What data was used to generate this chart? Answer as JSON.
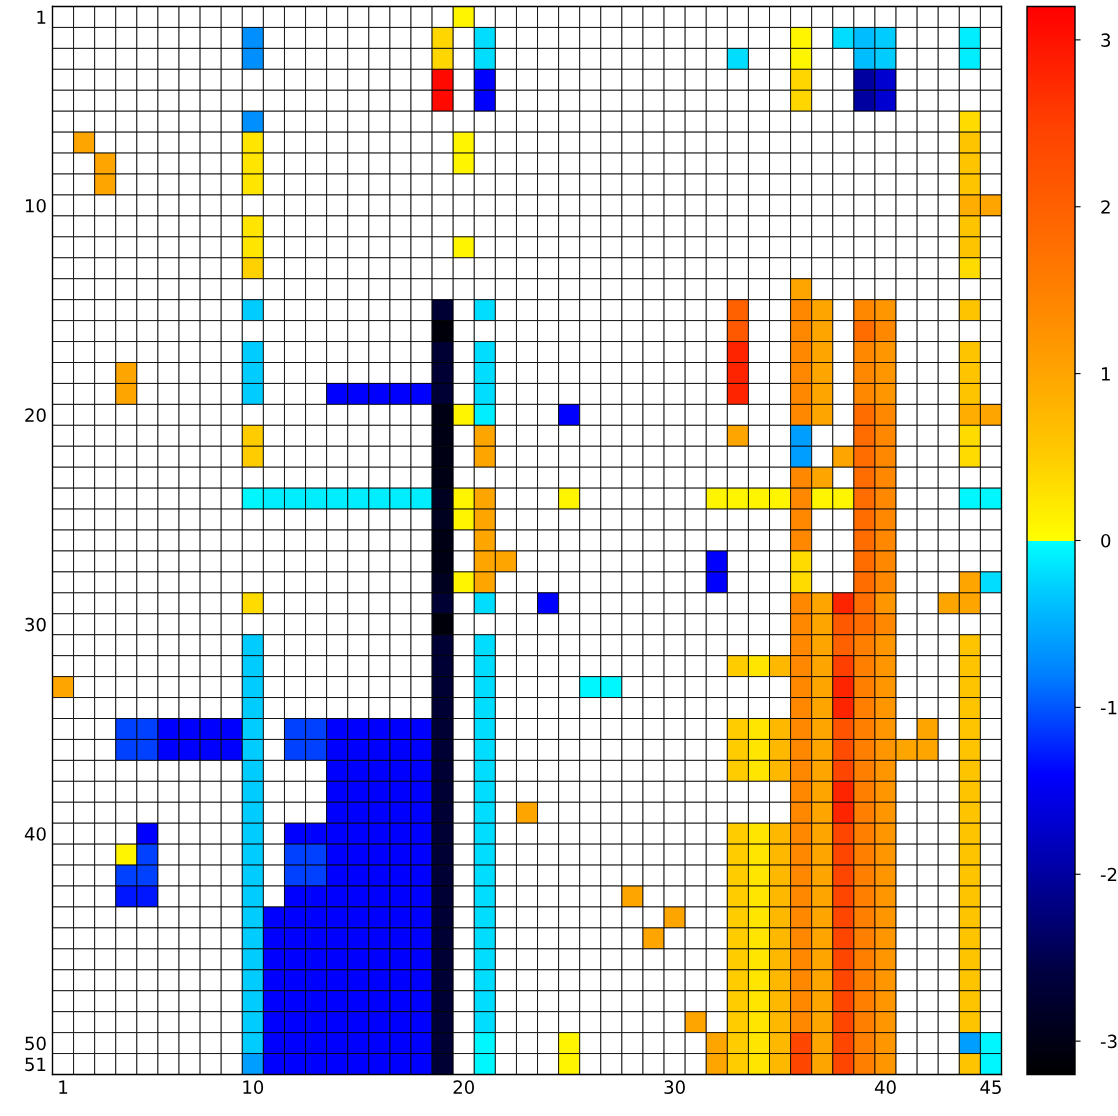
{
  "chart_data": {
    "type": "heatmap",
    "categories": [
      "1",
      null,
      null,
      null,
      null,
      null,
      null,
      null,
      null,
      "10",
      null,
      null,
      null,
      null,
      null,
      null,
      null,
      null,
      null,
      "20",
      null,
      null,
      null,
      null,
      null,
      null,
      null,
      null,
      null,
      "30",
      null,
      null,
      null,
      null,
      null,
      null,
      null,
      null,
      null,
      "40",
      null,
      null,
      null,
      null,
      "45"
    ],
    "y_categories": [
      "1",
      null,
      null,
      null,
      null,
      null,
      null,
      null,
      null,
      "10",
      null,
      null,
      null,
      null,
      null,
      null,
      null,
      null,
      null,
      "20",
      null,
      null,
      null,
      null,
      null,
      null,
      null,
      null,
      null,
      "30",
      null,
      null,
      null,
      null,
      null,
      null,
      null,
      null,
      null,
      "40",
      null,
      null,
      null,
      null,
      null,
      null,
      null,
      null,
      null,
      "50",
      "51"
    ],
    "clim": [
      -3.2,
      3.2
    ],
    "cticks": [
      -3,
      -2,
      -1,
      0,
      1,
      2,
      3
    ],
    "cells": [
      [
        null,
        null,
        null,
        null,
        null,
        null,
        null,
        null,
        null,
        null,
        null,
        null,
        null,
        null,
        null,
        null,
        null,
        null,
        null,
        0.1,
        null,
        null,
        null,
        null,
        null,
        null,
        null,
        null,
        null,
        null,
        null,
        null,
        null,
        null,
        null,
        null,
        null,
        null,
        null,
        null,
        null,
        null,
        null,
        null,
        null
      ],
      [
        null,
        null,
        null,
        null,
        null,
        null,
        null,
        null,
        null,
        -0.7,
        null,
        null,
        null,
        null,
        null,
        null,
        null,
        null,
        0.4,
        null,
        -0.2,
        null,
        null,
        null,
        null,
        null,
        null,
        null,
        null,
        null,
        null,
        null,
        null,
        null,
        null,
        0.1,
        null,
        -0.2,
        -0.4,
        -0.3,
        null,
        null,
        null,
        -0.1,
        null
      ],
      [
        null,
        null,
        null,
        null,
        null,
        null,
        null,
        null,
        null,
        -0.7,
        null,
        null,
        null,
        null,
        null,
        null,
        null,
        null,
        0.4,
        null,
        -0.2,
        null,
        null,
        null,
        null,
        null,
        null,
        null,
        null,
        null,
        null,
        null,
        -0.2,
        null,
        null,
        0.1,
        null,
        null,
        -0.4,
        -0.3,
        null,
        null,
        null,
        -0.1,
        null
      ],
      [
        null,
        null,
        null,
        null,
        null,
        null,
        null,
        null,
        null,
        null,
        null,
        null,
        null,
        null,
        null,
        null,
        null,
        null,
        3.1,
        null,
        -1.4,
        null,
        null,
        null,
        null,
        null,
        null,
        null,
        null,
        null,
        null,
        null,
        null,
        null,
        null,
        0.4,
        null,
        null,
        -2.0,
        -1.7,
        null,
        null,
        null,
        null,
        null
      ],
      [
        null,
        null,
        null,
        null,
        null,
        null,
        null,
        null,
        null,
        null,
        null,
        null,
        null,
        null,
        null,
        null,
        null,
        null,
        3.1,
        null,
        -1.4,
        null,
        null,
        null,
        null,
        null,
        null,
        null,
        null,
        null,
        null,
        null,
        null,
        null,
        null,
        0.4,
        null,
        null,
        -2.0,
        -1.7,
        null,
        null,
        null,
        null,
        null
      ],
      [
        null,
        null,
        null,
        null,
        null,
        null,
        null,
        null,
        null,
        -0.7,
        null,
        null,
        null,
        null,
        null,
        null,
        null,
        null,
        null,
        null,
        null,
        null,
        null,
        null,
        null,
        null,
        null,
        null,
        null,
        null,
        null,
        null,
        null,
        null,
        null,
        null,
        null,
        null,
        null,
        null,
        null,
        null,
        null,
        0.35,
        null
      ],
      [
        null,
        1.0,
        null,
        null,
        null,
        null,
        null,
        null,
        null,
        0.25,
        null,
        null,
        null,
        null,
        null,
        null,
        null,
        null,
        null,
        0.1,
        null,
        null,
        null,
        null,
        null,
        null,
        null,
        null,
        null,
        null,
        null,
        null,
        null,
        null,
        null,
        null,
        null,
        null,
        null,
        null,
        null,
        null,
        null,
        0.6,
        null
      ],
      [
        null,
        null,
        1.0,
        null,
        null,
        null,
        null,
        null,
        null,
        0.25,
        null,
        null,
        null,
        null,
        null,
        null,
        null,
        null,
        null,
        0.1,
        null,
        null,
        null,
        null,
        null,
        null,
        null,
        null,
        null,
        null,
        null,
        null,
        null,
        null,
        null,
        null,
        null,
        null,
        null,
        null,
        null,
        null,
        null,
        0.6,
        null
      ],
      [
        null,
        null,
        1.0,
        null,
        null,
        null,
        null,
        null,
        null,
        0.25,
        null,
        null,
        null,
        null,
        null,
        null,
        null,
        null,
        null,
        null,
        null,
        null,
        null,
        null,
        null,
        null,
        null,
        null,
        null,
        null,
        null,
        null,
        null,
        null,
        null,
        null,
        null,
        null,
        null,
        null,
        null,
        null,
        null,
        0.6,
        null
      ],
      [
        null,
        null,
        null,
        null,
        null,
        null,
        null,
        null,
        null,
        null,
        null,
        null,
        null,
        null,
        null,
        null,
        null,
        null,
        null,
        null,
        null,
        null,
        null,
        null,
        null,
        null,
        null,
        null,
        null,
        null,
        null,
        null,
        null,
        null,
        null,
        null,
        null,
        null,
        null,
        null,
        null,
        null,
        null,
        0.9,
        1.0
      ],
      [
        null,
        null,
        null,
        null,
        null,
        null,
        null,
        null,
        null,
        0.25,
        null,
        null,
        null,
        null,
        null,
        null,
        null,
        null,
        null,
        null,
        null,
        null,
        null,
        null,
        null,
        null,
        null,
        null,
        null,
        null,
        null,
        null,
        null,
        null,
        null,
        null,
        null,
        null,
        null,
        null,
        null,
        null,
        null,
        0.6,
        null
      ],
      [
        null,
        null,
        null,
        null,
        null,
        null,
        null,
        null,
        null,
        0.25,
        null,
        null,
        null,
        null,
        null,
        null,
        null,
        null,
        null,
        0.1,
        null,
        null,
        null,
        null,
        null,
        null,
        null,
        null,
        null,
        null,
        null,
        null,
        null,
        null,
        null,
        null,
        null,
        null,
        null,
        null,
        null,
        null,
        null,
        0.6,
        null
      ],
      [
        null,
        null,
        null,
        null,
        null,
        null,
        null,
        null,
        null,
        0.45,
        null,
        null,
        null,
        null,
        null,
        null,
        null,
        null,
        null,
        null,
        null,
        null,
        null,
        null,
        null,
        null,
        null,
        null,
        null,
        null,
        null,
        null,
        null,
        null,
        null,
        null,
        null,
        null,
        null,
        null,
        null,
        null,
        null,
        0.35,
        null
      ],
      [
        null,
        null,
        null,
        null,
        null,
        null,
        null,
        null,
        null,
        null,
        null,
        null,
        null,
        null,
        null,
        null,
        null,
        null,
        null,
        null,
        null,
        null,
        null,
        null,
        null,
        null,
        null,
        null,
        null,
        null,
        null,
        null,
        null,
        null,
        null,
        1.0,
        null,
        null,
        null,
        null,
        null,
        null,
        null,
        null,
        null
      ],
      [
        null,
        null,
        null,
        null,
        null,
        null,
        null,
        null,
        null,
        -0.3,
        null,
        null,
        null,
        null,
        null,
        null,
        null,
        null,
        -2.7,
        null,
        -0.2,
        null,
        null,
        null,
        null,
        null,
        null,
        null,
        null,
        null,
        null,
        null,
        2.0,
        null,
        null,
        1.4,
        1.0,
        null,
        1.4,
        1.2,
        null,
        null,
        null,
        0.6,
        null
      ],
      [
        null,
        null,
        null,
        null,
        null,
        null,
        null,
        null,
        null,
        null,
        null,
        null,
        null,
        null,
        null,
        null,
        null,
        null,
        -3.1,
        null,
        null,
        null,
        null,
        null,
        null,
        null,
        null,
        null,
        null,
        null,
        null,
        null,
        2.1,
        null,
        null,
        1.4,
        1.0,
        null,
        1.8,
        1.4,
        null,
        null,
        null,
        null,
        null
      ],
      [
        null,
        null,
        null,
        null,
        null,
        null,
        null,
        null,
        null,
        -0.3,
        null,
        null,
        null,
        null,
        null,
        null,
        null,
        null,
        -2.7,
        null,
        -0.2,
        null,
        null,
        null,
        null,
        null,
        null,
        null,
        null,
        null,
        null,
        null,
        2.8,
        null,
        null,
        1.4,
        1.0,
        null,
        1.4,
        1.2,
        null,
        null,
        null,
        0.6,
        null
      ],
      [
        null,
        null,
        null,
        1.0,
        null,
        null,
        null,
        null,
        null,
        -0.3,
        null,
        null,
        null,
        null,
        null,
        null,
        null,
        null,
        -2.7,
        null,
        -0.2,
        null,
        null,
        null,
        null,
        null,
        null,
        null,
        null,
        null,
        null,
        null,
        2.8,
        null,
        null,
        1.4,
        1.0,
        null,
        1.4,
        1.2,
        null,
        null,
        null,
        0.6,
        null
      ],
      [
        null,
        null,
        null,
        1.0,
        null,
        null,
        null,
        null,
        null,
        -0.3,
        null,
        null,
        null,
        -1.4,
        -1.4,
        -1.4,
        -1.4,
        -1.4,
        -2.7,
        null,
        -0.2,
        null,
        null,
        null,
        null,
        null,
        null,
        null,
        null,
        null,
        null,
        null,
        2.8,
        null,
        null,
        1.4,
        1.0,
        null,
        1.4,
        1.2,
        null,
        null,
        null,
        0.6,
        null
      ],
      [
        null,
        null,
        null,
        null,
        null,
        null,
        null,
        null,
        null,
        null,
        null,
        null,
        null,
        null,
        null,
        null,
        null,
        null,
        -3.0,
        0.1,
        -0.1,
        null,
        null,
        null,
        -1.4,
        null,
        null,
        null,
        null,
        null,
        null,
        null,
        null,
        null,
        null,
        1.4,
        1.0,
        null,
        1.8,
        1.4,
        null,
        null,
        null,
        0.9,
        1.0
      ],
      [
        null,
        null,
        null,
        null,
        null,
        null,
        null,
        null,
        null,
        0.5,
        null,
        null,
        null,
        null,
        null,
        null,
        null,
        null,
        -3.0,
        null,
        1.0,
        null,
        null,
        null,
        null,
        null,
        null,
        null,
        null,
        null,
        null,
        null,
        1.0,
        null,
        null,
        -0.6,
        null,
        null,
        1.8,
        1.4,
        null,
        null,
        null,
        0.35,
        null
      ],
      [
        null,
        null,
        null,
        null,
        null,
        null,
        null,
        null,
        null,
        0.5,
        null,
        null,
        null,
        null,
        null,
        null,
        null,
        null,
        -3.0,
        null,
        1.0,
        null,
        null,
        null,
        null,
        null,
        null,
        null,
        null,
        null,
        null,
        null,
        null,
        null,
        null,
        -0.6,
        null,
        1.0,
        1.8,
        1.4,
        null,
        null,
        null,
        0.35,
        null
      ],
      [
        null,
        null,
        null,
        null,
        null,
        null,
        null,
        null,
        null,
        null,
        null,
        null,
        null,
        null,
        null,
        null,
        null,
        null,
        -3.0,
        null,
        null,
        null,
        null,
        null,
        null,
        null,
        null,
        null,
        null,
        null,
        null,
        null,
        null,
        null,
        null,
        1.4,
        1.0,
        null,
        1.8,
        1.4,
        null,
        null,
        null,
        null,
        null
      ],
      [
        null,
        null,
        null,
        null,
        null,
        null,
        null,
        null,
        null,
        -0.05,
        -0.1,
        -0.1,
        -0.1,
        -0.1,
        -0.1,
        -0.1,
        -0.1,
        -0.1,
        -2.9,
        0.1,
        1.0,
        null,
        null,
        null,
        0.1,
        null,
        null,
        null,
        null,
        null,
        null,
        0.1,
        0.1,
        0.1,
        0.1,
        1.4,
        0.1,
        0.1,
        1.8,
        1.4,
        null,
        null,
        null,
        -0.05,
        -0.05
      ],
      [
        null,
        null,
        null,
        null,
        null,
        null,
        null,
        null,
        null,
        null,
        null,
        null,
        null,
        null,
        null,
        null,
        null,
        null,
        -2.9,
        0.1,
        1.0,
        null,
        null,
        null,
        null,
        null,
        null,
        null,
        null,
        null,
        null,
        null,
        null,
        null,
        null,
        1.4,
        null,
        null,
        1.8,
        1.4,
        null,
        null,
        null,
        null,
        null
      ],
      [
        null,
        null,
        null,
        null,
        null,
        null,
        null,
        null,
        null,
        null,
        null,
        null,
        null,
        null,
        null,
        null,
        null,
        null,
        -3.0,
        null,
        1.0,
        null,
        null,
        null,
        null,
        null,
        null,
        null,
        null,
        null,
        null,
        null,
        null,
        null,
        null,
        1.4,
        null,
        null,
        1.8,
        1.4,
        null,
        null,
        null,
        null,
        null
      ],
      [
        null,
        null,
        null,
        null,
        null,
        null,
        null,
        null,
        null,
        null,
        null,
        null,
        null,
        null,
        null,
        null,
        null,
        null,
        -3.0,
        null,
        1.0,
        1.0,
        null,
        null,
        null,
        null,
        null,
        null,
        null,
        null,
        null,
        -1.4,
        null,
        null,
        null,
        0.35,
        null,
        null,
        1.8,
        1.4,
        null,
        null,
        null,
        null,
        null
      ],
      [
        null,
        null,
        null,
        null,
        null,
        null,
        null,
        null,
        null,
        null,
        null,
        null,
        null,
        null,
        null,
        null,
        null,
        null,
        -2.9,
        0.1,
        1.0,
        null,
        null,
        null,
        null,
        null,
        null,
        null,
        null,
        null,
        null,
        -1.4,
        null,
        null,
        null,
        0.35,
        null,
        null,
        1.8,
        1.4,
        null,
        null,
        null,
        1.0,
        -0.2
      ],
      [
        null,
        null,
        null,
        null,
        null,
        null,
        null,
        null,
        null,
        0.35,
        null,
        null,
        null,
        null,
        null,
        null,
        null,
        null,
        -2.7,
        null,
        -0.2,
        null,
        null,
        -1.4,
        null,
        null,
        null,
        null,
        null,
        null,
        null,
        null,
        null,
        null,
        null,
        1.4,
        1.0,
        2.8,
        1.8,
        1.2,
        null,
        null,
        1.0,
        1.0,
        null
      ],
      [
        null,
        null,
        null,
        null,
        null,
        null,
        null,
        null,
        null,
        null,
        null,
        null,
        null,
        null,
        null,
        null,
        null,
        null,
        -3.1,
        null,
        null,
        null,
        null,
        null,
        null,
        null,
        null,
        null,
        null,
        null,
        null,
        null,
        null,
        null,
        null,
        1.4,
        1.0,
        2.1,
        1.8,
        1.4,
        null,
        null,
        null,
        null,
        null
      ],
      [
        null,
        null,
        null,
        null,
        null,
        null,
        null,
        null,
        null,
        -0.3,
        null,
        null,
        null,
        null,
        null,
        null,
        null,
        null,
        -2.7,
        null,
        -0.2,
        null,
        null,
        null,
        null,
        null,
        null,
        null,
        null,
        null,
        null,
        null,
        null,
        null,
        null,
        1.4,
        1.0,
        2.0,
        1.5,
        1.2,
        null,
        null,
        null,
        0.6,
        null
      ],
      [
        null,
        null,
        null,
        null,
        null,
        null,
        null,
        null,
        null,
        -0.3,
        null,
        null,
        null,
        null,
        null,
        null,
        null,
        null,
        -2.7,
        null,
        -0.2,
        null,
        null,
        null,
        null,
        null,
        null,
        null,
        null,
        null,
        null,
        null,
        0.5,
        0.25,
        0.75,
        1.4,
        1.0,
        2.5,
        1.5,
        1.2,
        null,
        null,
        null,
        0.6,
        null
      ],
      [
        1.0,
        null,
        null,
        null,
        null,
        null,
        null,
        null,
        null,
        -0.3,
        null,
        null,
        null,
        null,
        null,
        null,
        null,
        null,
        -2.7,
        null,
        -0.2,
        null,
        null,
        null,
        null,
        -0.05,
        -0.05,
        null,
        null,
        null,
        null,
        null,
        null,
        null,
        null,
        1.4,
        1.0,
        2.8,
        1.5,
        1.2,
        null,
        null,
        null,
        0.6,
        null
      ],
      [
        null,
        null,
        null,
        null,
        null,
        null,
        null,
        null,
        null,
        -0.3,
        null,
        null,
        null,
        null,
        null,
        null,
        null,
        null,
        -2.7,
        null,
        -0.2,
        null,
        null,
        null,
        null,
        null,
        null,
        null,
        null,
        null,
        null,
        null,
        null,
        null,
        null,
        1.4,
        1.0,
        2.8,
        1.5,
        1.2,
        null,
        null,
        null,
        0.6,
        null
      ],
      [
        null,
        null,
        null,
        -1.1,
        -1.1,
        -1.4,
        -1.4,
        -1.4,
        -1.4,
        -0.3,
        null,
        -1.1,
        -1.1,
        -1.4,
        -1.4,
        -1.4,
        -1.4,
        -1.4,
        -2.7,
        null,
        -0.2,
        null,
        null,
        null,
        null,
        null,
        null,
        null,
        null,
        null,
        null,
        null,
        0.5,
        0.25,
        0.75,
        1.4,
        1.0,
        2.2,
        1.5,
        1.2,
        null,
        1.0,
        null,
        0.6,
        null
      ],
      [
        null,
        null,
        null,
        -1.1,
        -1.1,
        -1.4,
        -1.4,
        -1.4,
        -1.4,
        -0.3,
        null,
        -1.1,
        -1.1,
        -1.4,
        -1.4,
        -1.4,
        -1.4,
        -1.4,
        -2.7,
        null,
        -0.2,
        null,
        null,
        null,
        null,
        null,
        null,
        null,
        null,
        null,
        null,
        null,
        0.5,
        0.25,
        0.75,
        1.4,
        1.0,
        2.3,
        1.5,
        1.2,
        1.0,
        1.0,
        null,
        0.6,
        null
      ],
      [
        null,
        null,
        null,
        null,
        null,
        null,
        null,
        null,
        null,
        -0.3,
        null,
        null,
        null,
        -1.4,
        -1.4,
        -1.4,
        -1.4,
        -1.4,
        -2.7,
        null,
        -0.2,
        null,
        null,
        null,
        null,
        null,
        null,
        null,
        null,
        null,
        null,
        null,
        0.5,
        0.25,
        0.75,
        1.4,
        1.0,
        2.4,
        1.5,
        1.2,
        null,
        null,
        null,
        0.6,
        null
      ],
      [
        null,
        null,
        null,
        null,
        null,
        null,
        null,
        null,
        null,
        -0.3,
        null,
        null,
        null,
        -1.4,
        -1.4,
        -1.4,
        -1.4,
        -1.4,
        -2.7,
        null,
        -0.2,
        null,
        null,
        null,
        null,
        null,
        null,
        null,
        null,
        null,
        null,
        null,
        null,
        null,
        null,
        1.4,
        1.0,
        2.8,
        1.5,
        1.2,
        null,
        null,
        null,
        0.6,
        null
      ],
      [
        null,
        null,
        null,
        null,
        null,
        null,
        null,
        null,
        null,
        -0.3,
        null,
        null,
        null,
        -1.4,
        -1.4,
        -1.4,
        -1.4,
        -1.4,
        -2.7,
        null,
        -0.2,
        null,
        1.0,
        null,
        null,
        null,
        null,
        null,
        null,
        null,
        null,
        null,
        null,
        null,
        null,
        1.4,
        1.0,
        2.8,
        1.5,
        1.2,
        null,
        null,
        null,
        0.6,
        null
      ],
      [
        null,
        null,
        null,
        null,
        -1.4,
        null,
        null,
        null,
        null,
        -0.3,
        null,
        -1.4,
        -1.4,
        -1.4,
        -1.4,
        -1.4,
        -1.4,
        -1.4,
        -2.7,
        null,
        -0.2,
        null,
        null,
        null,
        null,
        null,
        null,
        null,
        null,
        null,
        null,
        null,
        0.5,
        0.25,
        0.75,
        1.4,
        1.0,
        2.4,
        1.5,
        1.2,
        null,
        null,
        null,
        0.6,
        null
      ],
      [
        null,
        null,
        null,
        0.1,
        -1.1,
        null,
        null,
        null,
        null,
        -0.3,
        null,
        -1.1,
        -1.1,
        -1.4,
        -1.4,
        -1.4,
        -1.4,
        -1.4,
        -2.7,
        null,
        -0.2,
        null,
        null,
        null,
        null,
        null,
        null,
        null,
        null,
        null,
        null,
        null,
        0.5,
        0.25,
        0.75,
        1.4,
        1.0,
        2.4,
        1.5,
        1.2,
        null,
        null,
        null,
        0.6,
        null
      ],
      [
        null,
        null,
        null,
        -1.1,
        -1.1,
        null,
        null,
        null,
        null,
        -0.3,
        null,
        -1.1,
        -1.1,
        -1.4,
        -1.4,
        -1.4,
        -1.4,
        -1.4,
        -2.7,
        null,
        -0.2,
        null,
        null,
        null,
        null,
        null,
        null,
        null,
        null,
        null,
        null,
        null,
        0.5,
        0.25,
        0.75,
        1.4,
        1.0,
        2.4,
        1.5,
        1.2,
        null,
        null,
        null,
        0.6,
        null
      ],
      [
        null,
        null,
        null,
        -1.3,
        -1.3,
        null,
        null,
        null,
        null,
        -0.3,
        null,
        -1.4,
        -1.4,
        -1.4,
        -1.4,
        -1.4,
        -1.4,
        -1.4,
        -2.7,
        null,
        -0.2,
        null,
        null,
        null,
        null,
        null,
        null,
        1.0,
        null,
        null,
        null,
        null,
        0.5,
        0.25,
        0.75,
        1.4,
        1.0,
        2.4,
        1.5,
        1.2,
        null,
        null,
        null,
        0.6,
        null
      ],
      [
        null,
        null,
        null,
        null,
        null,
        null,
        null,
        null,
        null,
        -0.3,
        -1.4,
        -1.4,
        -1.4,
        -1.4,
        -1.4,
        -1.4,
        -1.4,
        -1.4,
        -2.7,
        null,
        -0.2,
        null,
        null,
        null,
        null,
        null,
        null,
        null,
        null,
        1.0,
        null,
        null,
        0.5,
        0.25,
        0.75,
        1.4,
        1.0,
        2.4,
        1.5,
        1.2,
        null,
        null,
        null,
        0.6,
        null
      ],
      [
        null,
        null,
        null,
        null,
        null,
        null,
        null,
        null,
        null,
        -0.3,
        -1.4,
        -1.4,
        -1.4,
        -1.4,
        -1.4,
        -1.4,
        -1.4,
        -1.4,
        -2.7,
        null,
        -0.2,
        null,
        null,
        null,
        null,
        null,
        null,
        null,
        1.0,
        null,
        null,
        null,
        0.5,
        0.25,
        0.75,
        1.4,
        1.0,
        2.4,
        1.5,
        1.2,
        null,
        null,
        null,
        0.6,
        null
      ],
      [
        null,
        null,
        null,
        null,
        null,
        null,
        null,
        null,
        null,
        -0.3,
        -1.4,
        -1.4,
        -1.4,
        -1.4,
        -1.4,
        -1.4,
        -1.4,
        -1.4,
        -2.7,
        null,
        -0.2,
        null,
        null,
        null,
        null,
        null,
        null,
        null,
        null,
        null,
        null,
        null,
        0.5,
        0.25,
        0.75,
        1.4,
        1.0,
        2.4,
        1.5,
        1.2,
        null,
        null,
        null,
        0.6,
        null
      ],
      [
        null,
        null,
        null,
        null,
        null,
        null,
        null,
        null,
        null,
        -0.3,
        -1.4,
        -1.4,
        -1.4,
        -1.4,
        -1.4,
        -1.4,
        -1.4,
        -1.4,
        -2.7,
        null,
        -0.2,
        null,
        null,
        null,
        null,
        null,
        null,
        null,
        null,
        null,
        null,
        null,
        0.5,
        0.25,
        0.75,
        1.4,
        1.0,
        2.4,
        1.5,
        1.2,
        null,
        null,
        null,
        0.6,
        null
      ],
      [
        null,
        null,
        null,
        null,
        null,
        null,
        null,
        null,
        null,
        -0.3,
        -1.4,
        -1.4,
        -1.4,
        -1.4,
        -1.4,
        -1.4,
        -1.4,
        -1.4,
        -2.7,
        null,
        -0.2,
        null,
        null,
        null,
        null,
        null,
        null,
        null,
        null,
        null,
        null,
        null,
        0.5,
        0.25,
        0.75,
        1.4,
        1.0,
        2.4,
        1.5,
        1.2,
        null,
        null,
        null,
        0.6,
        null
      ],
      [
        null,
        null,
        null,
        null,
        null,
        null,
        null,
        null,
        null,
        -0.3,
        -1.4,
        -1.4,
        -1.4,
        -1.4,
        -1.4,
        -1.4,
        -1.4,
        -1.4,
        -2.7,
        null,
        -0.2,
        null,
        null,
        null,
        null,
        null,
        null,
        null,
        null,
        null,
        1.0,
        null,
        0.5,
        0.25,
        0.75,
        1.4,
        1.0,
        2.4,
        1.5,
        1.2,
        null,
        null,
        null,
        0.6,
        null
      ],
      [
        null,
        null,
        null,
        null,
        null,
        null,
        null,
        null,
        null,
        -0.3,
        -1.4,
        -1.4,
        -1.4,
        -1.4,
        -1.4,
        -1.4,
        -1.4,
        -1.4,
        -2.7,
        null,
        -0.05,
        null,
        null,
        null,
        0.1,
        null,
        null,
        null,
        null,
        null,
        null,
        1.0,
        0.5,
        0.25,
        0.75,
        2.4,
        1.0,
        2.4,
        1.5,
        1.2,
        null,
        null,
        null,
        -0.6,
        -0.05
      ],
      [
        null,
        null,
        null,
        null,
        null,
        null,
        null,
        null,
        null,
        -0.6,
        -1.4,
        -1.4,
        -1.4,
        -1.4,
        -1.4,
        -1.4,
        -1.4,
        -1.4,
        -2.7,
        null,
        -0.05,
        null,
        null,
        null,
        0.1,
        null,
        null,
        null,
        null,
        null,
        null,
        1.0,
        0.5,
        0.25,
        0.75,
        2.4,
        1.0,
        2.4,
        1.5,
        1.2,
        null,
        null,
        null,
        0.6,
        -0.05
      ]
    ]
  }
}
